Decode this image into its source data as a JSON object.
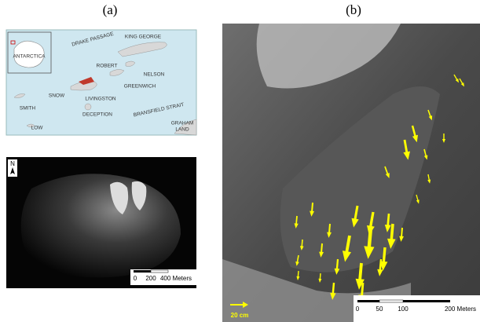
{
  "panels": [
    {
      "label": "(a)",
      "map": {
        "labels": [
          "ANTARCTICA",
          "DRAKE PASSAGE",
          "KING GEORGE",
          "ROBERT",
          "NELSON",
          "GREENWICH",
          "SNOW",
          "LIVINGSTON",
          "SMITH",
          "DECEPTION",
          "BRANSFIELD STRAIT",
          "GRAHAM",
          "LAND",
          "LOW"
        ]
      },
      "image": {
        "north": "N",
        "scale": [
          "0",
          "200",
          "400 Meters"
        ]
      }
    },
    {
      "label": "(b)",
      "image": {
        "scale": [
          "0",
          "50",
          "100",
          "200 Meters"
        ],
        "vector_scale": "20 cm"
      }
    }
  ]
}
